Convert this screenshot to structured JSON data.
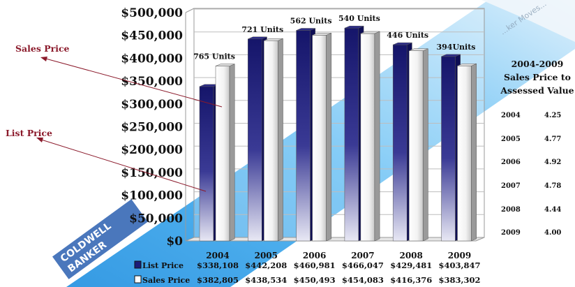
{
  "chart_data": {
    "type": "bar",
    "categories": [
      "2004",
      "2005",
      "2006",
      "2007",
      "2008",
      "2009"
    ],
    "series": [
      {
        "name": "List Price",
        "values": [
          338108,
          442208,
          460981,
          466047,
          429481,
          403847
        ],
        "labels": [
          "$338,108",
          "$442,208",
          "$460,981",
          "$466,047",
          "$429,481",
          "$403,847"
        ]
      },
      {
        "name": "Sales Price",
        "values": [
          382805,
          438534,
          450493,
          454083,
          416376,
          383302
        ],
        "labels": [
          "$382,805",
          "$438,534",
          "$450,493",
          "$454,083",
          "$416,376",
          "$383,302"
        ]
      }
    ],
    "unit_labels": [
      "765 Units",
      "721 Units",
      "562 Units",
      "540 Units",
      "446 Units",
      "394Units"
    ],
    "yticks": [
      "$0",
      "$50,000",
      "$100,000",
      "$150,000",
      "$200,000",
      "$250,000",
      "$300,000",
      "$350,000",
      "$400,000",
      "$450,000",
      "$500,000"
    ],
    "ylim": [
      0,
      500000
    ],
    "grid": true,
    "annotations": [
      "Sales Price",
      "List Price"
    ],
    "colors": {
      "list_price": "#1c1c78",
      "sales_price": "#ffffff",
      "annotation": "#8b1a2b",
      "band": "#2f9fe8"
    }
  },
  "ratio_table": {
    "title_lines": [
      "2004-2009",
      "Sales Price to",
      "Assessed Value"
    ],
    "rows": [
      {
        "year": "2004",
        "value": "4.25"
      },
      {
        "year": "2005",
        "value": "4.77"
      },
      {
        "year": "2006",
        "value": "4.92"
      },
      {
        "year": "2007",
        "value": "4.78"
      },
      {
        "year": "2008",
        "value": "4.44"
      },
      {
        "year": "2009",
        "value": "4.00"
      }
    ]
  },
  "watermark": {
    "logo_text": "COLDWELL BANKER",
    "band_text": "...ker Moves..."
  }
}
